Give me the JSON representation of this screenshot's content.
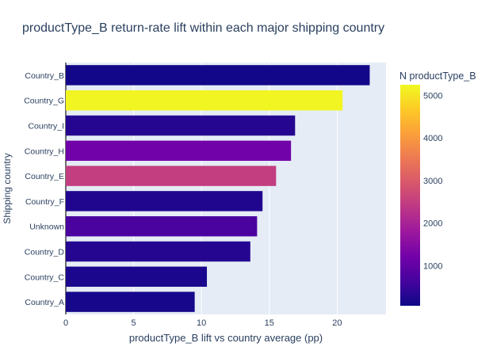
{
  "chart_data": {
    "type": "bar",
    "orientation": "horizontal",
    "title": "productType_B return-rate lift within each major shipping country",
    "xlabel": "productType_B lift vs country average (pp)",
    "ylabel": "Shipping country",
    "xlim": [
      0,
      23.6
    ],
    "xticks": [
      0,
      5,
      10,
      15,
      20
    ],
    "categories": [
      "Country_B",
      "Country_G",
      "Country_I",
      "Country_H",
      "Country_E",
      "Country_F",
      "Unknown",
      "Country_D",
      "Country_C",
      "Country_A"
    ],
    "values": [
      22.4,
      20.4,
      16.9,
      16.6,
      15.5,
      14.5,
      14.1,
      13.6,
      10.4,
      9.5
    ],
    "color_values": [
      120,
      5200,
      300,
      1200,
      2500,
      250,
      700,
      300,
      200,
      150
    ],
    "colorbar": {
      "title": "N productType_B",
      "range": [
        60,
        5250
      ],
      "ticks": [
        1000,
        2000,
        3000,
        4000,
        5000
      ]
    },
    "colorscale": [
      "#0d0887",
      "#46039f",
      "#7201a8",
      "#9c179e",
      "#bd3786",
      "#d8576b",
      "#ed7953",
      "#fb9f3a",
      "#fdca26",
      "#f0f921"
    ],
    "plot_background": "#e5ecf6",
    "grid": true,
    "legend": "colorbar-right"
  }
}
